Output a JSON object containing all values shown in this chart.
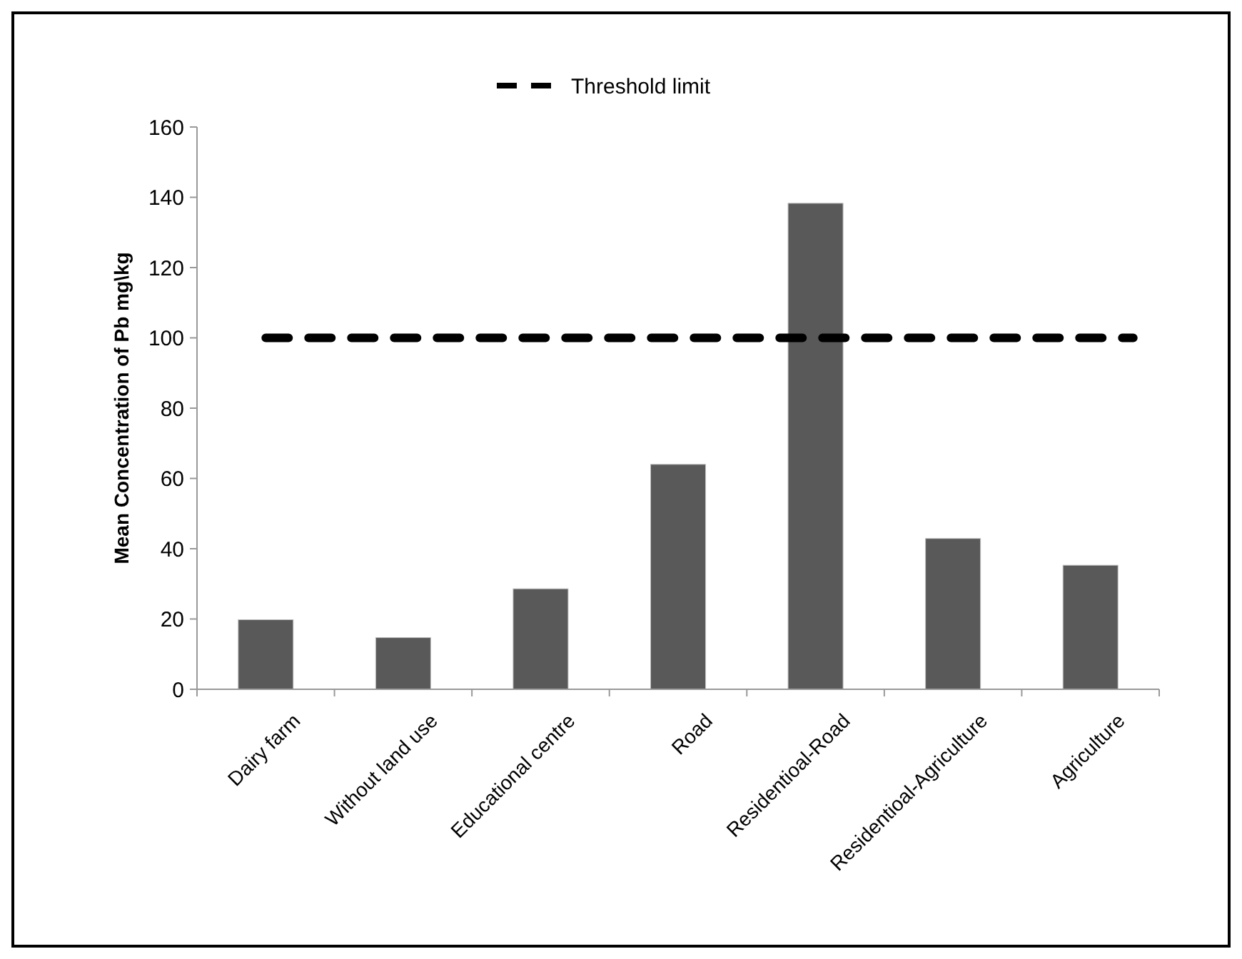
{
  "chart_data": {
    "type": "bar",
    "ylabel": "Mean Concentration of Pb mg\\kg",
    "categories": [
      "Dairy farm",
      "Without land use",
      "Educational centre",
      "Road",
      "Residentioal-Road",
      "Residentioal-Agriculture",
      "Agriculture"
    ],
    "values": [
      19.8,
      14.7,
      28.6,
      64,
      138.3,
      42.9,
      35.3
    ],
    "color": "#595959",
    "ylim": [
      0,
      160
    ],
    "yticks": [
      0,
      20,
      40,
      60,
      80,
      100,
      120,
      140,
      160
    ],
    "grid": false,
    "legend": "top",
    "ref_lines": [
      {
        "axis": "y",
        "value": 100,
        "label": "Threshold limit",
        "color": "#000000",
        "line_style": "dashed"
      }
    ]
  }
}
